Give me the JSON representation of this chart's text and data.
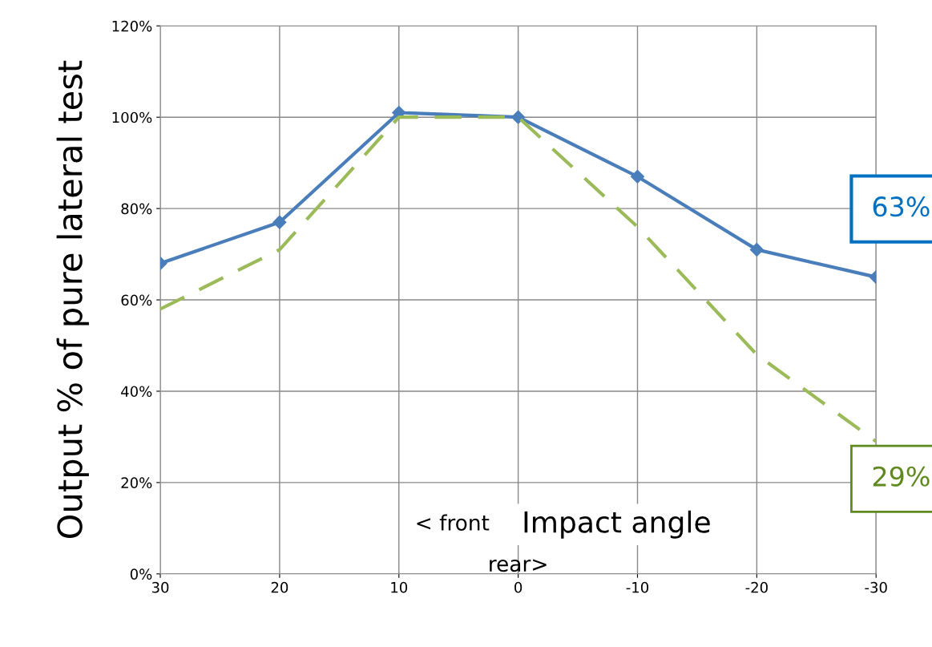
{
  "chart_data": {
    "type": "line",
    "ylabel": "Output % of pure lateral test",
    "xlabel": "Impact angle",
    "x": [
      30,
      20,
      10,
      0,
      -10,
      -20,
      -30
    ],
    "series": [
      {
        "color": "#4a7ebb",
        "marker": "diamond",
        "line_style": "solid",
        "values": [
          68,
          77,
          101,
          100,
          87,
          71,
          65
        ]
      },
      {
        "color": "#9bbb59",
        "marker": "none",
        "line_style": "dashed",
        "values": [
          58,
          71,
          100,
          100,
          76,
          48,
          29
        ]
      }
    ],
    "xlim": [
      30,
      -30
    ],
    "xticks": [
      30,
      20,
      10,
      0,
      -10,
      -20,
      -30
    ],
    "ylim": [
      0,
      120
    ],
    "yticks": [
      {
        "value": 0,
        "label": "0%"
      },
      {
        "value": 20,
        "label": "20%"
      },
      {
        "value": 40,
        "label": "40%"
      },
      {
        "value": 60,
        "label": "60%"
      },
      {
        "value": 80,
        "label": "80%"
      },
      {
        "value": 100,
        "label": "100%"
      },
      {
        "value": 120,
        "label": "120%"
      }
    ],
    "grid": true,
    "legend": false,
    "annotations": [
      "< front",
      "rear>",
      "63%",
      "29%"
    ]
  }
}
